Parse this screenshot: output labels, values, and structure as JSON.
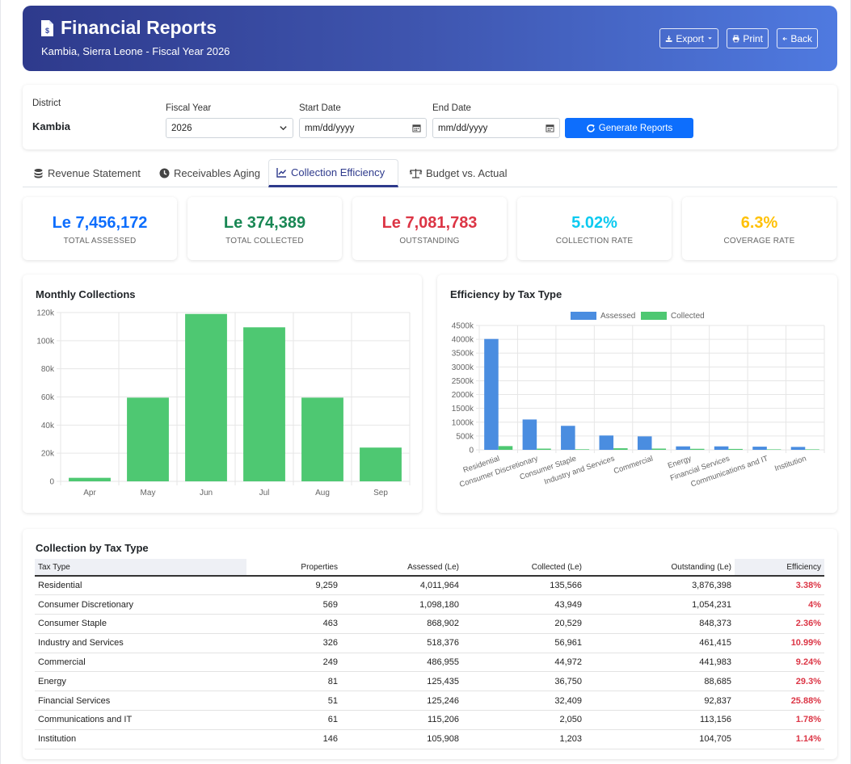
{
  "header": {
    "title": "Financial Reports",
    "subtitle": "Kambia, Sierra Leone - Fiscal Year 2026",
    "buttons": {
      "export": "Export",
      "print": "Print",
      "back": "Back"
    }
  },
  "filters": {
    "district_label": "District",
    "district_value": "Kambia",
    "fiscal_year_label": "Fiscal Year",
    "fiscal_year_value": "2026",
    "start_date_label": "Start Date",
    "start_date_placeholder": "mm/dd/yyyy",
    "end_date_label": "End Date",
    "end_date_placeholder": "mm/dd/yyyy",
    "generate_label": "Generate Reports"
  },
  "tabs": [
    {
      "label": "Revenue Statement",
      "icon": "coins-icon"
    },
    {
      "label": "Receivables Aging",
      "icon": "clock-icon"
    },
    {
      "label": "Collection Efficiency",
      "icon": "line-chart-icon",
      "active": true
    },
    {
      "label": "Budget vs. Actual",
      "icon": "balance-scale-icon"
    }
  ],
  "kpis": [
    {
      "value": "Le 7,456,172",
      "label": "TOTAL ASSESSED",
      "color": "#0d6efd"
    },
    {
      "value": "Le 374,389",
      "label": "TOTAL COLLECTED",
      "color": "#198754"
    },
    {
      "value": "Le 7,081,783",
      "label": "OUTSTANDING",
      "color": "#dc3545"
    },
    {
      "value": "5.02%",
      "label": "COLLECTION RATE",
      "color": "#0dcaf0"
    },
    {
      "value": "6.3%",
      "label": "COVERAGE RATE",
      "color": "#ffc107"
    }
  ],
  "chart_data": [
    {
      "type": "bar",
      "title": "Monthly Collections",
      "categories": [
        "Apr",
        "May",
        "Jun",
        "Jul",
        "Aug",
        "Sep"
      ],
      "values": [
        2500,
        59500,
        119000,
        109500,
        59500,
        24000
      ],
      "yticks": [
        "0",
        "20k",
        "40k",
        "60k",
        "80k",
        "100k",
        "120k"
      ],
      "ylim": [
        0,
        120000
      ],
      "color": "#4ec872",
      "grid": true
    },
    {
      "type": "bar",
      "title": "Efficiency by Tax Type",
      "categories": [
        "Residential",
        "Consumer Discretionary",
        "Consumer Staple",
        "Industry and Services",
        "Commercial",
        "Energy",
        "Financial Services",
        "Communications and IT",
        "Institution"
      ],
      "series": [
        {
          "name": "Assessed",
          "color": "#4a8de0",
          "values": [
            4011964,
            1098180,
            868902,
            518376,
            486955,
            125435,
            125246,
            115206,
            105908
          ]
        },
        {
          "name": "Collected",
          "color": "#4ec872",
          "values": [
            135566,
            43949,
            20529,
            56961,
            44972,
            36750,
            32409,
            2050,
            1203
          ]
        }
      ],
      "yticks": [
        "0",
        "500k",
        "1000k",
        "1500k",
        "2000k",
        "2500k",
        "3000k",
        "3500k",
        "4000k",
        "4500k"
      ],
      "ylim": [
        0,
        4500000
      ],
      "legend": "top",
      "grid": true
    }
  ],
  "table": {
    "title": "Collection by Tax Type",
    "columns": [
      "Tax Type",
      "Properties",
      "Assessed (Le)",
      "Collected (Le)",
      "Outstanding (Le)",
      "Efficiency"
    ],
    "rows": [
      [
        "Residential",
        "9,259",
        "4,011,964",
        "135,566",
        "3,876,398",
        "3.38%"
      ],
      [
        "Consumer Discretionary",
        "569",
        "1,098,180",
        "43,949",
        "1,054,231",
        "4%"
      ],
      [
        "Consumer Staple",
        "463",
        "868,902",
        "20,529",
        "848,373",
        "2.36%"
      ],
      [
        "Industry and Services",
        "326",
        "518,376",
        "56,961",
        "461,415",
        "10.99%"
      ],
      [
        "Commercial",
        "249",
        "486,955",
        "44,972",
        "441,983",
        "9.24%"
      ],
      [
        "Energy",
        "81",
        "125,435",
        "36,750",
        "88,685",
        "29.3%"
      ],
      [
        "Financial Services",
        "51",
        "125,246",
        "32,409",
        "92,837",
        "25.88%"
      ],
      [
        "Communications and IT",
        "61",
        "115,206",
        "2,050",
        "113,156",
        "1.78%"
      ],
      [
        "Institution",
        "146",
        "105,908",
        "1,203",
        "104,705",
        "1.14%"
      ]
    ]
  }
}
